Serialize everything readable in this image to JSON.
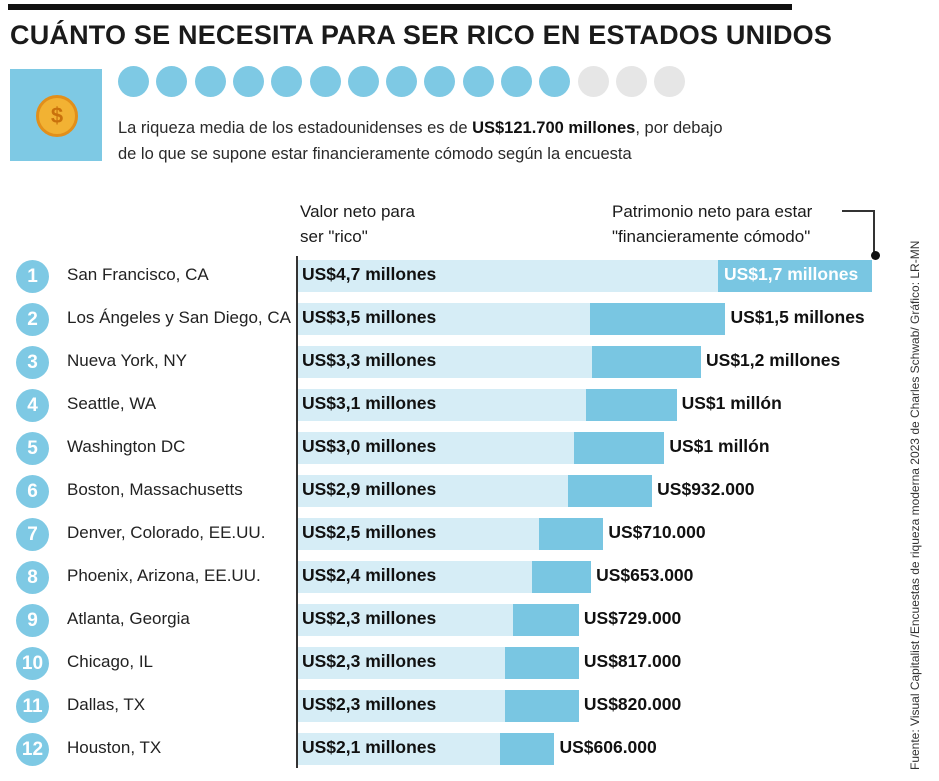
{
  "title": "CUÁNTO SE NECESITA PARA SER RICO EN ESTADOS UNIDOS",
  "summary": {
    "text_before": "La riqueza media de los estadounidenses es de ",
    "highlight": "US$121.700 millones",
    "text_after": ", por debajo de lo que se supone estar financieramente cómodo según la encuesta"
  },
  "dots": {
    "filled": 12,
    "total": 15,
    "filled_color": "#7ec9e4",
    "empty_color": "#e6e6e6"
  },
  "coin_symbol": "$",
  "colors": {
    "accent": "#7ec9e4",
    "rico_bar": "#d6edf6",
    "comfortable_bar": "#79c6e2"
  },
  "chart_data": {
    "type": "bar",
    "orientation": "horizontal",
    "title": "CUÁNTO SE NECESITA PARA SER RICO EN ESTADOS UNIDOS",
    "unit": "millones de US$",
    "column_headers": {
      "rico": "Valor neto para ser \"rico\"",
      "comfortable": "Patrimonio neto para estar \"financieramente cómodo\""
    },
    "categories": [
      "San Francisco, CA",
      "Los Ángeles y San Diego, CA",
      "Nueva York, NY",
      "Seattle, WA",
      "Washington DC",
      "Boston, Massachusetts",
      "Denver, Colorado, EE.UU.",
      "Phoenix, Arizona, EE.UU.",
      "Atlanta, Georgia",
      "Chicago, IL",
      "Dallas, TX",
      "Houston, TX"
    ],
    "ranks": [
      "1",
      "2",
      "3",
      "4",
      "5",
      "6",
      "7",
      "8",
      "9",
      "10",
      "11",
      "12"
    ],
    "series": [
      {
        "name": "Valor neto para ser \"rico\"",
        "values": [
          4.7,
          3.5,
          3.3,
          3.1,
          3.0,
          2.9,
          2.5,
          2.4,
          2.3,
          2.3,
          2.3,
          2.1
        ],
        "labels": [
          "US$4,7 millones",
          "US$3,5 millones",
          "US$3,3 millones",
          "US$3,1 millones",
          "US$3,0 millones",
          "US$2,9 millones",
          "US$2,5 millones",
          "US$2,4 millones",
          "US$2,3 millones",
          "US$2,3 millones",
          "US$2,3 millones",
          "US$2,1 millones"
        ]
      },
      {
        "name": "Patrimonio neto para estar \"financieramente cómodo\"",
        "values": [
          1.7,
          1.5,
          1.2,
          1.0,
          1.0,
          0.932,
          0.71,
          0.653,
          0.729,
          0.817,
          0.82,
          0.606
        ],
        "labels": [
          "US$1,7 millones",
          "US$1,5 millones",
          "US$1,2 millones",
          "US$1 millón",
          "US$1 millón",
          "US$932.000",
          "US$710.000",
          "US$653.000",
          "US$729.000",
          "US$817.000",
          "US$820.000",
          "US$606.000"
        ]
      }
    ],
    "source": "Fuente: Visual Capitalist /Encuestas de riqueza moderna 2023 de Charles Schwab/ Gráfico: LR-MN"
  }
}
